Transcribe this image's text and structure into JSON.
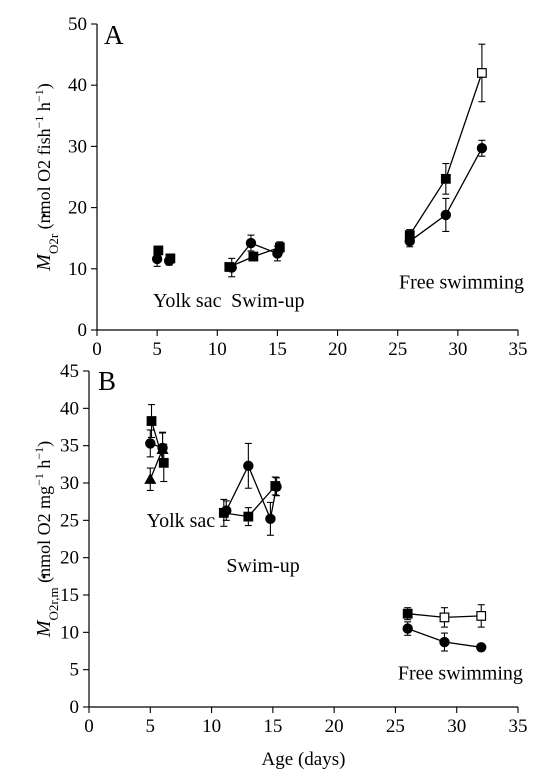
{
  "chart_data": [
    {
      "type": "scatter",
      "panel_label": "A",
      "ylabel_main": "M",
      "ylabel_sub": "O2r",
      "ylabel_rest": " (nmol O2 fish",
      "ylabel_sup1": "−1",
      "ylabel_mid": " h",
      "ylabel_sup2": "−1",
      "ylabel_end": ")",
      "xlabel": "",
      "xlim": [
        0,
        35
      ],
      "ylim": [
        0,
        50
      ],
      "xticks": [
        0,
        5,
        10,
        15,
        20,
        25,
        30,
        35
      ],
      "yticks": [
        0,
        10,
        20,
        30,
        40,
        50
      ],
      "annotations": [
        {
          "text": "Yolk sac",
          "x": 7.5,
          "y": 4.5
        },
        {
          "text": "Swim-up",
          "x": 14.2,
          "y": 4.5
        },
        {
          "text": "Free swimming",
          "x": 30.3,
          "y": 7.5
        }
      ],
      "series": [
        {
          "marker": "square",
          "fill": "black",
          "connect": false,
          "points": [
            {
              "x": 5.1,
              "y": 13.0,
              "err": 0.3
            },
            {
              "x": 6.1,
              "y": 11.7,
              "err": 0.5
            }
          ]
        },
        {
          "marker": "circle",
          "fill": "black",
          "connect": false,
          "points": [
            {
              "x": 5.0,
              "y": 11.6,
              "err": 1.2
            },
            {
              "x": 6.0,
              "y": 11.3,
              "err": 0.7
            }
          ]
        },
        {
          "marker": "square",
          "fill": "black",
          "connect": true,
          "points": [
            {
              "x": 11.0,
              "y": 10.3,
              "err": 0.6
            },
            {
              "x": 13.0,
              "y": 12.0,
              "err": 0.6
            },
            {
              "x": 15.2,
              "y": 13.5,
              "err": 0.9
            }
          ]
        },
        {
          "marker": "circle",
          "fill": "black",
          "connect": true,
          "points": [
            {
              "x": 11.2,
              "y": 10.2,
              "err": 1.5
            },
            {
              "x": 12.8,
              "y": 14.2,
              "err": 1.3
            },
            {
              "x": 15.0,
              "y": 12.5,
              "err": 1.2
            }
          ]
        },
        {
          "marker": "square",
          "fill": "mixed",
          "connect": true,
          "points": [
            {
              "x": 26.0,
              "y": 15.5,
              "err": 0.9,
              "fill": "black"
            },
            {
              "x": 29.0,
              "y": 24.7,
              "err": 2.5,
              "fill": "black"
            },
            {
              "x": 32.0,
              "y": 42.0,
              "err": 4.7,
              "fill": "white"
            }
          ]
        },
        {
          "marker": "circle",
          "fill": "black",
          "connect": true,
          "points": [
            {
              "x": 26.0,
              "y": 14.5,
              "err": 0.9
            },
            {
              "x": 29.0,
              "y": 18.8,
              "err": 2.7
            },
            {
              "x": 32.0,
              "y": 29.7,
              "err": 1.3
            }
          ]
        }
      ]
    },
    {
      "type": "scatter",
      "panel_label": "B",
      "ylabel_main": "M",
      "ylabel_sub": "O2r,m",
      "ylabel_rest": " (nmol O2 mg",
      "ylabel_sup1": "−1",
      "ylabel_mid": " h",
      "ylabel_sup2": "−1",
      "ylabel_end": ")",
      "xlabel": "Age (days)",
      "xlim": [
        0,
        35
      ],
      "ylim": [
        0,
        45
      ],
      "xticks": [
        0,
        5,
        10,
        15,
        20,
        25,
        30,
        35
      ],
      "yticks": [
        0,
        5,
        10,
        15,
        20,
        25,
        30,
        35,
        40,
        45
      ],
      "annotations": [
        {
          "text": "Yolk sac",
          "x": 7.5,
          "y": 24.7
        },
        {
          "text": "Swim-up",
          "x": 14.2,
          "y": 18.7
        },
        {
          "text": "Free swimming",
          "x": 30.3,
          "y": 4.3
        }
      ],
      "series": [
        {
          "marker": "square",
          "fill": "black",
          "connect": true,
          "points": [
            {
              "x": 5.1,
              "y": 38.3,
              "err": 2.2
            },
            {
              "x": 6.1,
              "y": 32.7,
              "err": 2.5
            }
          ]
        },
        {
          "marker": "circle",
          "fill": "black",
          "connect": true,
          "points": [
            {
              "x": 5.0,
              "y": 35.3,
              "err": 1.8
            },
            {
              "x": 6.0,
              "y": 34.7,
              "err": 2.0
            }
          ]
        },
        {
          "marker": "triangle",
          "fill": "black",
          "connect": true,
          "points": [
            {
              "x": 5.0,
              "y": 30.5,
              "err": 1.5
            },
            {
              "x": 6.0,
              "y": 34.5,
              "err": 2.3
            }
          ]
        },
        {
          "marker": "square",
          "fill": "black",
          "connect": true,
          "points": [
            {
              "x": 11.0,
              "y": 26.0,
              "err": 1.8
            },
            {
              "x": 13.0,
              "y": 25.5,
              "err": 1.2
            },
            {
              "x": 15.2,
              "y": 29.6,
              "err": 1.2
            }
          ]
        },
        {
          "marker": "circle",
          "fill": "black",
          "connect": true,
          "points": [
            {
              "x": 11.2,
              "y": 26.3,
              "err": 1.3
            },
            {
              "x": 13.0,
              "y": 32.3,
              "err": 3.0
            },
            {
              "x": 14.8,
              "y": 25.2,
              "err": 2.2
            },
            {
              "x": 15.3,
              "y": 29.5,
              "err": 1.2
            }
          ]
        },
        {
          "marker": "square",
          "fill": "mixed",
          "connect": true,
          "points": [
            {
              "x": 26.0,
              "y": 12.5,
              "err": 0.8,
              "fill": "black"
            },
            {
              "x": 29.0,
              "y": 12.0,
              "err": 1.3,
              "fill": "white"
            },
            {
              "x": 32.0,
              "y": 12.2,
              "err": 1.5,
              "fill": "white"
            }
          ]
        },
        {
          "marker": "circle",
          "fill": "black",
          "connect": true,
          "points": [
            {
              "x": 26.0,
              "y": 10.5,
              "err": 0.9
            },
            {
              "x": 29.0,
              "y": 8.7,
              "err": 1.2
            },
            {
              "x": 32.0,
              "y": 8.0,
              "err": 0.3
            }
          ]
        }
      ]
    }
  ]
}
